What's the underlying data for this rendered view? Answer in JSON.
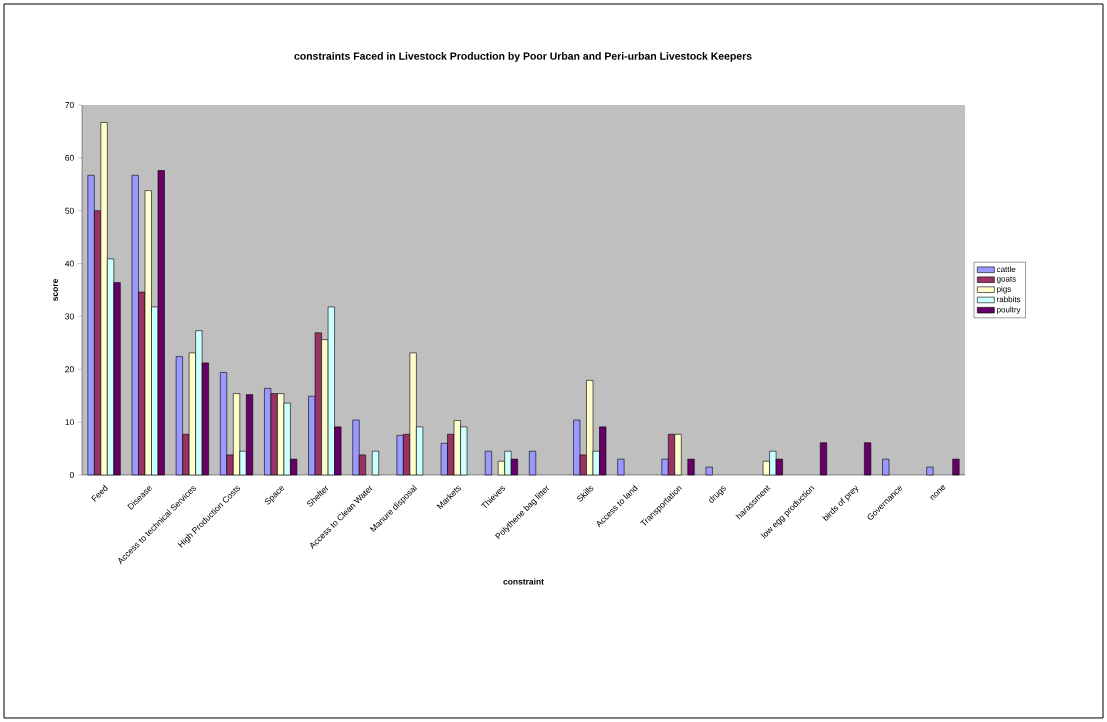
{
  "chart_data": {
    "type": "bar",
    "title": "constraints Faced in Livestock Production by Poor Urban and Peri-urban Livestock Keepers",
    "xlabel": "constraint",
    "ylabel": "score",
    "categories": [
      "Feed",
      "Disease",
      "Access to technical Services",
      "High Production Costs",
      "Space",
      "Shelter",
      "Access to Clean Water",
      "Manure disposal",
      "Markets",
      "Thieves",
      "Polythene bag litter",
      "Skills",
      "Access to land",
      "Transportation",
      "drugs",
      "harassment",
      "low egg production",
      "birds of prey",
      "Governance",
      "none"
    ],
    "series": [
      {
        "name": "cattle",
        "color": "#9999ff",
        "values": [
          56.7,
          56.7,
          22.4,
          19.4,
          16.4,
          14.9,
          10.4,
          7.5,
          6.0,
          4.5,
          4.5,
          10.4,
          3.0,
          3.0,
          1.5,
          null,
          null,
          null,
          3.0,
          1.5
        ]
      },
      {
        "name": "goats",
        "color": "#993366",
        "values": [
          50.0,
          34.6,
          7.7,
          3.8,
          15.4,
          26.9,
          3.8,
          7.7,
          7.7,
          null,
          null,
          3.8,
          null,
          7.7,
          null,
          null,
          null,
          null,
          null,
          null
        ]
      },
      {
        "name": "pigs",
        "color": "#ffffcc",
        "values": [
          66.7,
          53.8,
          23.1,
          15.4,
          15.4,
          25.6,
          null,
          23.1,
          10.3,
          2.6,
          null,
          17.9,
          null,
          7.7,
          null,
          2.6,
          null,
          null,
          null,
          null
        ]
      },
      {
        "name": "rabbits",
        "color": "#ccffff",
        "values": [
          40.9,
          31.8,
          27.3,
          4.5,
          13.6,
          31.8,
          4.5,
          9.1,
          9.1,
          4.5,
          null,
          4.5,
          null,
          null,
          null,
          4.5,
          null,
          null,
          null,
          null
        ]
      },
      {
        "name": "poultry",
        "color": "#660066",
        "values": [
          36.4,
          57.6,
          21.2,
          15.2,
          3.0,
          9.1,
          null,
          null,
          null,
          3.0,
          null,
          9.1,
          null,
          3.0,
          null,
          3.0,
          6.1,
          6.1,
          null,
          3.0
        ]
      }
    ],
    "ylim": [
      0,
      70
    ],
    "yticks": [
      0,
      10,
      20,
      30,
      40,
      50,
      60,
      70
    ],
    "legend": "right"
  }
}
